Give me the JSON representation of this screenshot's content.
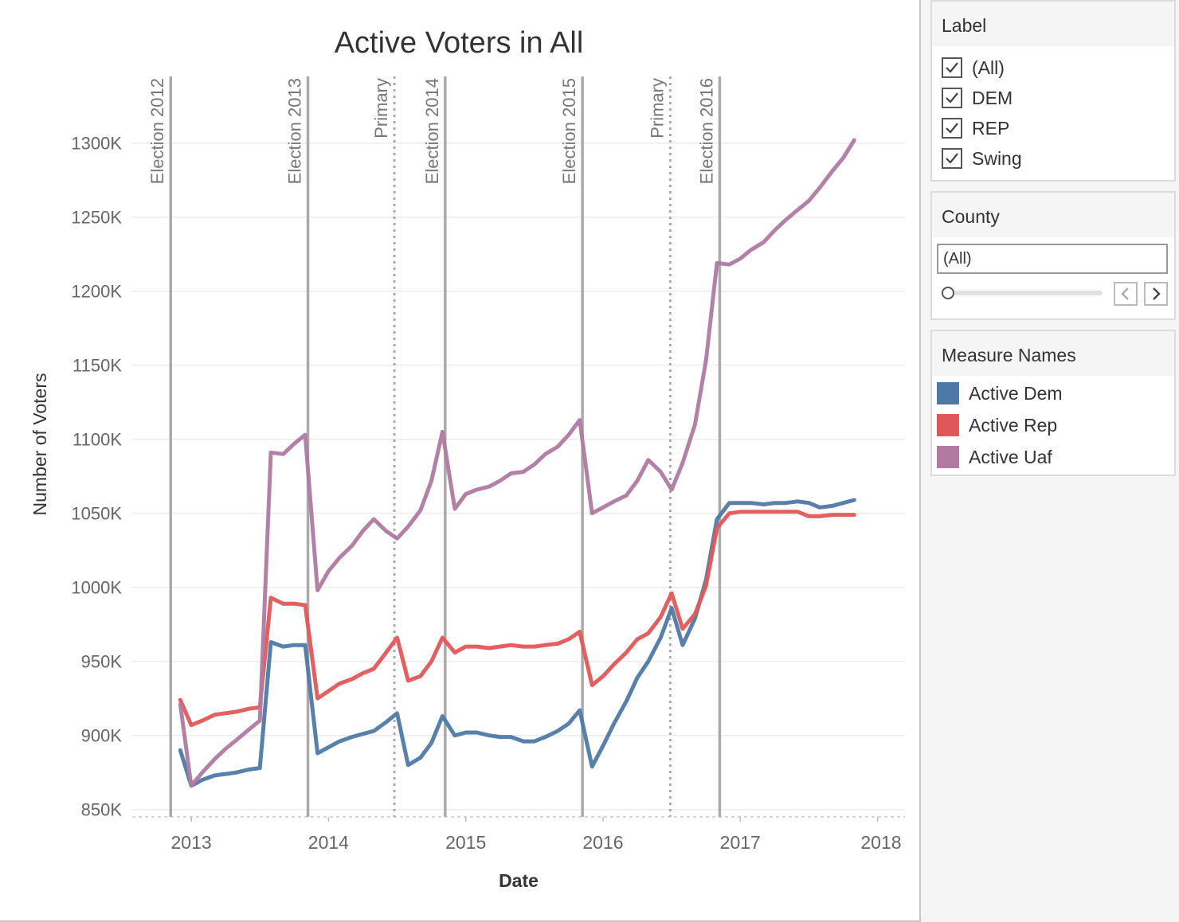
{
  "chart_data": {
    "type": "line",
    "title": "Active Voters in All",
    "xlabel": "Date",
    "ylabel": "Number of Voters",
    "xlim": [
      2012.57,
      2018.2
    ],
    "ylim": [
      845,
      1345
    ],
    "x_ticks": [
      2013,
      2014,
      2015,
      2016,
      2017,
      2018
    ],
    "y_ticks": [
      850,
      900,
      950,
      1000,
      1050,
      1100,
      1150,
      1200,
      1250,
      1300
    ],
    "y_tick_labels": [
      "850K",
      "900K",
      "950K",
      "1000K",
      "1050K",
      "1100K",
      "1150K",
      "1200K",
      "1250K",
      "1300K"
    ],
    "grid": true,
    "reference_lines": [
      {
        "x": 2012.85,
        "label": "Election 2012",
        "style": "solid"
      },
      {
        "x": 2013.85,
        "label": "Election 2013",
        "style": "solid"
      },
      {
        "x": 2014.48,
        "label": "Primary",
        "style": "dotted"
      },
      {
        "x": 2014.85,
        "label": "Election 2014",
        "style": "solid"
      },
      {
        "x": 2015.85,
        "label": "Election 2015",
        "style": "solid"
      },
      {
        "x": 2016.49,
        "label": "Primary",
        "style": "dotted"
      },
      {
        "x": 2016.85,
        "label": "Election 2016",
        "style": "solid"
      }
    ],
    "series": [
      {
        "name": "Active Dem",
        "color": "#4e79a7",
        "points": [
          [
            2012.92,
            890
          ],
          [
            2013.0,
            866
          ],
          [
            2013.08,
            870
          ],
          [
            2013.17,
            873
          ],
          [
            2013.25,
            874
          ],
          [
            2013.33,
            875
          ],
          [
            2013.42,
            877
          ],
          [
            2013.5,
            878
          ],
          [
            2013.58,
            963
          ],
          [
            2013.67,
            960
          ],
          [
            2013.75,
            961
          ],
          [
            2013.83,
            961
          ],
          [
            2013.92,
            888
          ],
          [
            2014.0,
            892
          ],
          [
            2014.08,
            896
          ],
          [
            2014.17,
            899
          ],
          [
            2014.25,
            901
          ],
          [
            2014.33,
            903
          ],
          [
            2014.42,
            909
          ],
          [
            2014.5,
            915
          ],
          [
            2014.58,
            880
          ],
          [
            2014.67,
            885
          ],
          [
            2014.75,
            895
          ],
          [
            2014.83,
            913
          ],
          [
            2014.92,
            900
          ],
          [
            2015.0,
            902
          ],
          [
            2015.08,
            902
          ],
          [
            2015.17,
            900
          ],
          [
            2015.25,
            899
          ],
          [
            2015.33,
            899
          ],
          [
            2015.42,
            896
          ],
          [
            2015.5,
            896
          ],
          [
            2015.58,
            899
          ],
          [
            2015.67,
            903
          ],
          [
            2015.75,
            908
          ],
          [
            2015.83,
            917
          ],
          [
            2015.92,
            879
          ],
          [
            2016.0,
            893
          ],
          [
            2016.08,
            908
          ],
          [
            2016.17,
            923
          ],
          [
            2016.25,
            939
          ],
          [
            2016.33,
            950
          ],
          [
            2016.42,
            966
          ],
          [
            2016.5,
            986
          ],
          [
            2016.58,
            961
          ],
          [
            2016.67,
            979
          ],
          [
            2016.75,
            1005
          ],
          [
            2016.83,
            1046
          ],
          [
            2016.92,
            1057
          ],
          [
            2017.0,
            1057
          ],
          [
            2017.08,
            1057
          ],
          [
            2017.17,
            1056
          ],
          [
            2017.25,
            1057
          ],
          [
            2017.33,
            1057
          ],
          [
            2017.42,
            1058
          ],
          [
            2017.5,
            1057
          ],
          [
            2017.58,
            1054
          ],
          [
            2017.67,
            1055
          ],
          [
            2017.75,
            1057
          ],
          [
            2017.83,
            1059
          ]
        ]
      },
      {
        "name": "Active Rep",
        "color": "#e15759",
        "points": [
          [
            2012.92,
            924
          ],
          [
            2013.0,
            907
          ],
          [
            2013.08,
            910
          ],
          [
            2013.17,
            914
          ],
          [
            2013.25,
            915
          ],
          [
            2013.33,
            916
          ],
          [
            2013.42,
            918
          ],
          [
            2013.5,
            919
          ],
          [
            2013.58,
            993
          ],
          [
            2013.67,
            989
          ],
          [
            2013.75,
            989
          ],
          [
            2013.83,
            988
          ],
          [
            2013.92,
            925
          ],
          [
            2014.0,
            930
          ],
          [
            2014.08,
            935
          ],
          [
            2014.17,
            938
          ],
          [
            2014.25,
            942
          ],
          [
            2014.33,
            945
          ],
          [
            2014.42,
            956
          ],
          [
            2014.5,
            966
          ],
          [
            2014.58,
            937
          ],
          [
            2014.67,
            940
          ],
          [
            2014.75,
            950
          ],
          [
            2014.83,
            966
          ],
          [
            2014.92,
            956
          ],
          [
            2015.0,
            960
          ],
          [
            2015.08,
            960
          ],
          [
            2015.17,
            959
          ],
          [
            2015.25,
            960
          ],
          [
            2015.33,
            961
          ],
          [
            2015.42,
            960
          ],
          [
            2015.5,
            960
          ],
          [
            2015.58,
            961
          ],
          [
            2015.67,
            962
          ],
          [
            2015.75,
            965
          ],
          [
            2015.83,
            970
          ],
          [
            2015.92,
            934
          ],
          [
            2016.0,
            940
          ],
          [
            2016.08,
            948
          ],
          [
            2016.17,
            956
          ],
          [
            2016.25,
            965
          ],
          [
            2016.33,
            969
          ],
          [
            2016.42,
            980
          ],
          [
            2016.5,
            996
          ],
          [
            2016.58,
            972
          ],
          [
            2016.67,
            982
          ],
          [
            2016.75,
            1001
          ],
          [
            2016.83,
            1040
          ],
          [
            2016.92,
            1050
          ],
          [
            2017.0,
            1051
          ],
          [
            2017.08,
            1051
          ],
          [
            2017.17,
            1051
          ],
          [
            2017.25,
            1051
          ],
          [
            2017.33,
            1051
          ],
          [
            2017.42,
            1051
          ],
          [
            2017.5,
            1048
          ],
          [
            2017.58,
            1048
          ],
          [
            2017.67,
            1049
          ],
          [
            2017.75,
            1049
          ],
          [
            2017.83,
            1049
          ]
        ]
      },
      {
        "name": "Active Uaf",
        "color": "#b07aa1",
        "points": [
          [
            2012.92,
            921
          ],
          [
            2013.0,
            866
          ],
          [
            2013.08,
            875
          ],
          [
            2013.17,
            884
          ],
          [
            2013.25,
            891
          ],
          [
            2013.33,
            897
          ],
          [
            2013.42,
            904
          ],
          [
            2013.5,
            910
          ],
          [
            2013.58,
            1091
          ],
          [
            2013.67,
            1090
          ],
          [
            2013.75,
            1097
          ],
          [
            2013.83,
            1103
          ],
          [
            2013.92,
            998
          ],
          [
            2014.0,
            1011
          ],
          [
            2014.08,
            1020
          ],
          [
            2014.17,
            1028
          ],
          [
            2014.25,
            1038
          ],
          [
            2014.33,
            1046
          ],
          [
            2014.42,
            1038
          ],
          [
            2014.5,
            1033
          ],
          [
            2014.58,
            1041
          ],
          [
            2014.67,
            1052
          ],
          [
            2014.75,
            1072
          ],
          [
            2014.83,
            1105
          ],
          [
            2014.92,
            1053
          ],
          [
            2015.0,
            1063
          ],
          [
            2015.08,
            1066
          ],
          [
            2015.17,
            1068
          ],
          [
            2015.25,
            1072
          ],
          [
            2015.33,
            1077
          ],
          [
            2015.42,
            1078
          ],
          [
            2015.5,
            1083
          ],
          [
            2015.58,
            1090
          ],
          [
            2015.67,
            1095
          ],
          [
            2015.75,
            1103
          ],
          [
            2015.83,
            1113
          ],
          [
            2015.92,
            1050
          ],
          [
            2016.0,
            1054
          ],
          [
            2016.08,
            1058
          ],
          [
            2016.17,
            1062
          ],
          [
            2016.25,
            1072
          ],
          [
            2016.33,
            1086
          ],
          [
            2016.42,
            1078
          ],
          [
            2016.5,
            1066
          ],
          [
            2016.58,
            1084
          ],
          [
            2016.67,
            1110
          ],
          [
            2016.75,
            1153
          ],
          [
            2016.83,
            1219
          ],
          [
            2016.92,
            1218
          ],
          [
            2017.0,
            1222
          ],
          [
            2017.08,
            1228
          ],
          [
            2017.17,
            1233
          ],
          [
            2017.25,
            1241
          ],
          [
            2017.33,
            1248
          ],
          [
            2017.42,
            1255
          ],
          [
            2017.5,
            1261
          ],
          [
            2017.58,
            1270
          ],
          [
            2017.67,
            1281
          ],
          [
            2017.75,
            1290
          ],
          [
            2017.83,
            1302
          ]
        ]
      }
    ]
  },
  "sidebar": {
    "label_filter": {
      "title": "Label",
      "items": [
        {
          "label": "(All)",
          "checked": true
        },
        {
          "label": "DEM",
          "checked": true
        },
        {
          "label": "REP",
          "checked": true
        },
        {
          "label": "Swing",
          "checked": true
        }
      ]
    },
    "county_filter": {
      "title": "County",
      "value": "(All)"
    },
    "legend": {
      "title": "Measure Names",
      "items": [
        {
          "label": "Active Dem",
          "color": "#4e79a7"
        },
        {
          "label": "Active Rep",
          "color": "#e15759"
        },
        {
          "label": "Active Uaf",
          "color": "#b07aa1"
        }
      ]
    }
  }
}
